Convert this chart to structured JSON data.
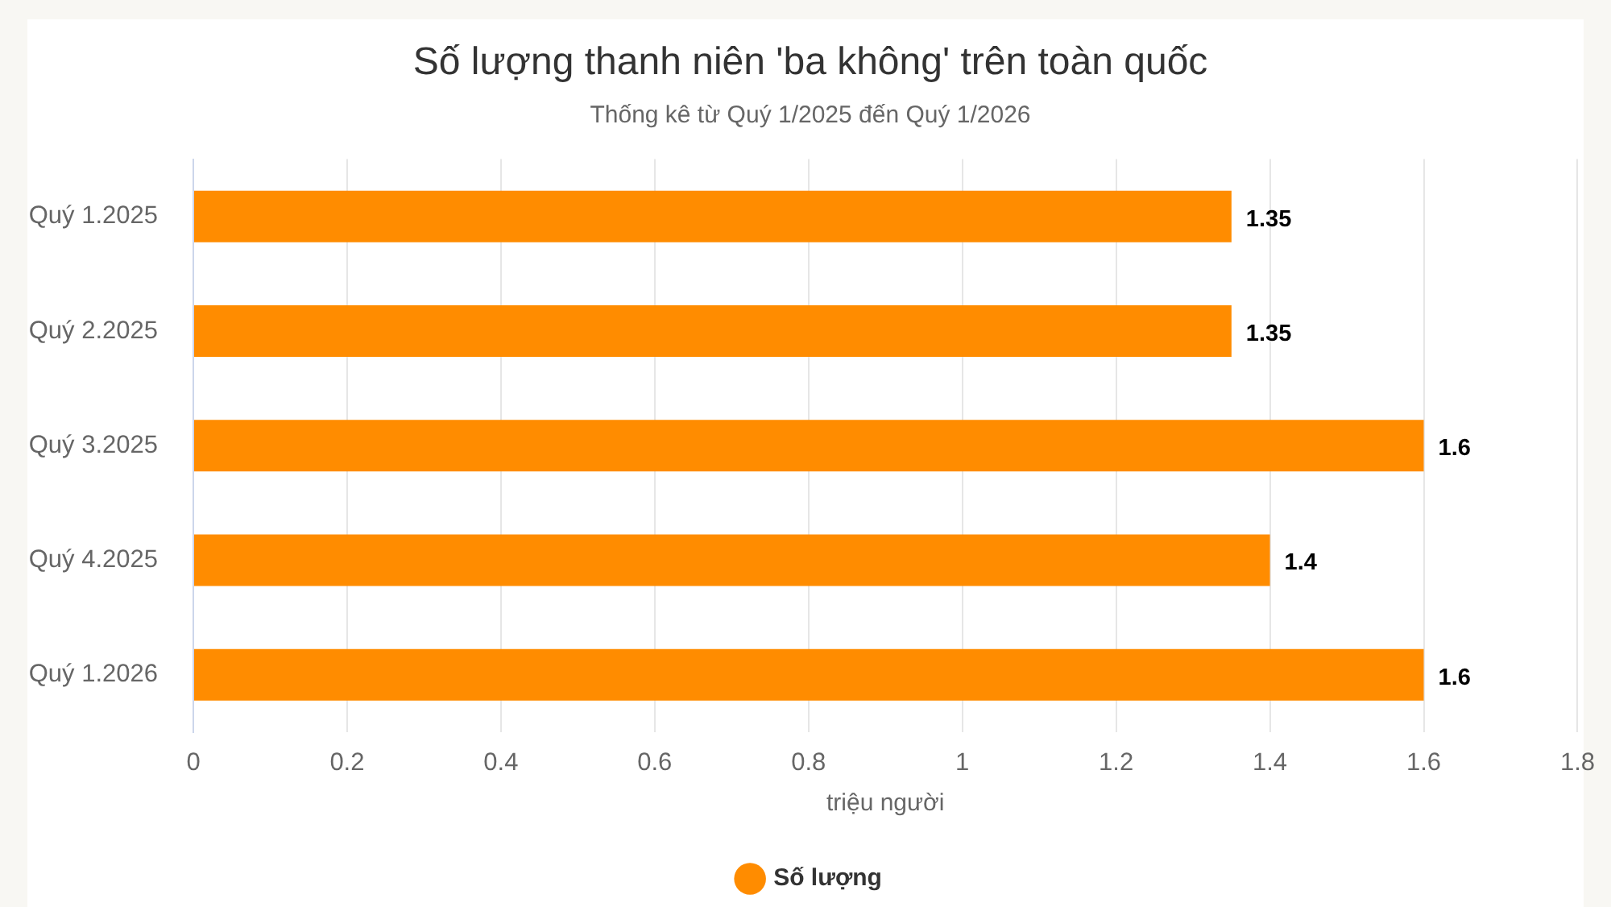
{
  "chart_data": {
    "type": "bar",
    "orientation": "horizontal",
    "title": "Số lượng thanh niên 'ba không' trên toàn quốc",
    "subtitle": "Thống kê từ Quý 1/2025 đến Quý 1/2026",
    "xlabel": "triệu người",
    "categories": [
      "Quý 1.2025",
      "Quý 2.2025",
      "Quý 3.2025",
      "Quý 4.2025",
      "Quý 1.2026"
    ],
    "series": [
      {
        "name": "Số lượng",
        "color": "#ff8c00",
        "values": [
          1.35,
          1.35,
          1.6,
          1.4,
          1.6
        ]
      }
    ],
    "xlim": [
      0,
      1.8
    ],
    "xticks": [
      0,
      0.2,
      0.4,
      0.6,
      0.8,
      1,
      1.2,
      1.4,
      1.6,
      1.8
    ],
    "grid": "x",
    "legend": "bottom",
    "data_labels": true
  }
}
